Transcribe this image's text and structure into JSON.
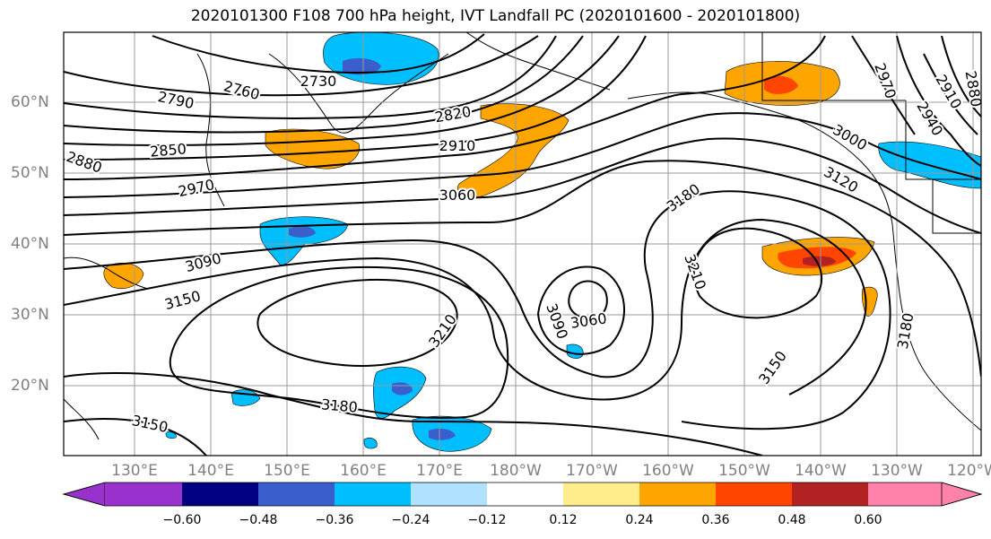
{
  "title": "2020101300 F108 700 hPa height, IVT Landfall PC (2020101600 - 2020101800)",
  "lat_labels": [
    "60°N",
    "50°N",
    "40°N",
    "30°N",
    "20°N"
  ],
  "lon_labels": [
    "130°E",
    "140°E",
    "150°E",
    "160°E",
    "170°E",
    "180°W",
    "170°W",
    "160°W",
    "150°W",
    "140°W",
    "130°W",
    "120°W"
  ],
  "contour_labels": [
    "2730",
    "2760",
    "2790",
    "2820",
    "2850",
    "2880",
    "2910",
    "2970",
    "3060",
    "3090",
    "3150",
    "3180",
    "3210",
    "3060",
    "3090",
    "3180",
    "3210",
    "3000",
    "3120",
    "2970",
    "2940",
    "2910",
    "2880",
    "3150",
    "3180",
    "3150"
  ],
  "colorbar": {
    "ticks": [
      "−0.60",
      "−0.48",
      "−0.36",
      "−0.24",
      "−0.12",
      "0.12",
      "0.24",
      "0.36",
      "0.48",
      "0.60"
    ],
    "colors": [
      "#9932cc",
      "#000080",
      "#3a5fcd",
      "#00bfff",
      "#b0e2ff",
      "#ffffff",
      "#ffec8b",
      "#ffa500",
      "#ff4500",
      "#b22222",
      "#ff82ab"
    ]
  }
}
